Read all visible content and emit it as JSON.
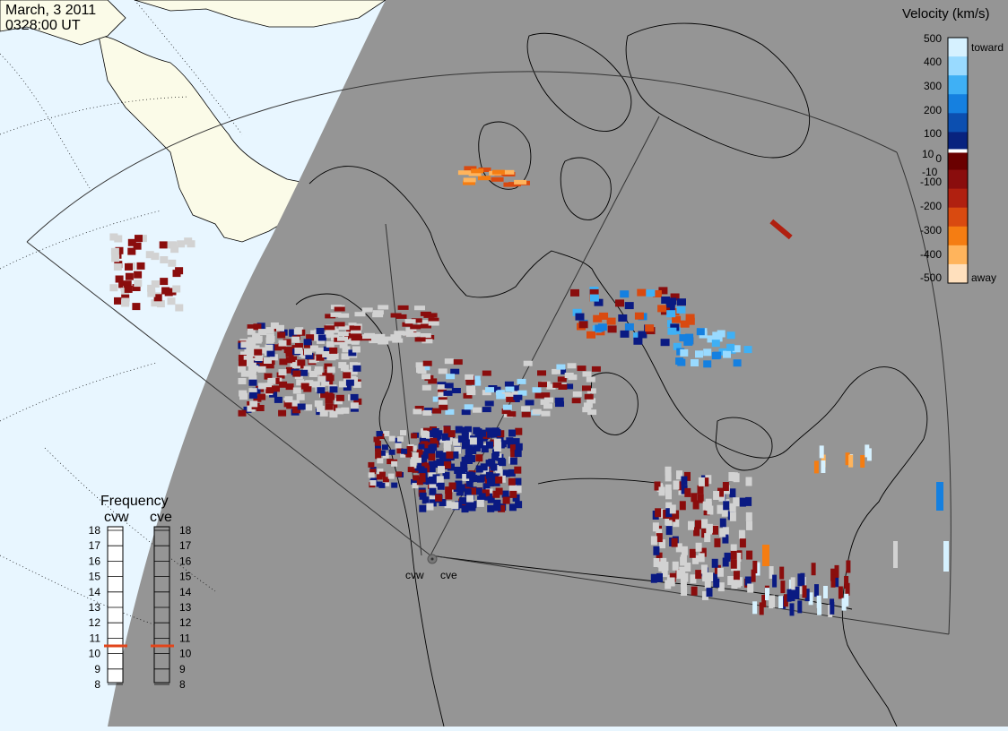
{
  "header": {
    "date": "March, 3 2011",
    "time": "0328:00 UT"
  },
  "radar_labels": {
    "west": "cvw",
    "east": "cve"
  },
  "colorbar": {
    "title": "Velocity (km/s)",
    "ticks": [
      "500",
      "400",
      "300",
      "200",
      "100",
      "10",
      "0",
      "-10",
      "-100",
      "-200",
      "-300",
      "-400",
      "-500"
    ],
    "toward_label": "toward",
    "away_label": "away",
    "colors": [
      "#d6f1ff",
      "#99daff",
      "#3fb0f5",
      "#1580e0",
      "#0c4fb0",
      "#08237f",
      "#6a0000",
      "#8a0d0d",
      "#b02010",
      "#d94a10",
      "#f57d12",
      "#ffb45c",
      "#ffe0bd"
    ]
  },
  "frequency": {
    "title": "Frequency",
    "left_label": "cvw",
    "right_label": "cve",
    "ticks": [
      "18",
      "17",
      "16",
      "15",
      "14",
      "13",
      "12",
      "11",
      "10",
      "9",
      "8"
    ],
    "cvw_mhz": 10.5,
    "cve_mhz": 10.5,
    "marker_color": "#e2451a"
  },
  "map_colors": {
    "ocean_day": "#e8f6ff",
    "land_day": "#fbfbe8",
    "night": "#959595",
    "ground_scatter": "#d2d2d2"
  }
}
